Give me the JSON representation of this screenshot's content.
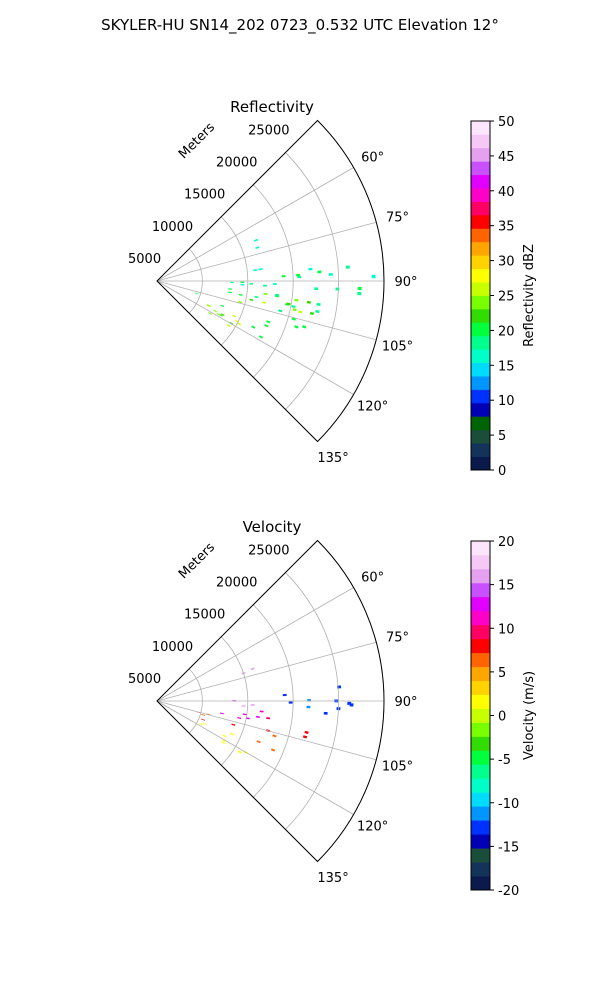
{
  "figure": {
    "title": "SKYLER-HU  SN14_202  0723_0.532 UTC Elevation 12°"
  },
  "chart_data": [
    {
      "type": "heatmap",
      "projection": "polar-sector",
      "title": "Reflectivity",
      "range_label": "Meters",
      "range_ticks": [
        5000,
        10000,
        15000,
        20000,
        25000
      ],
      "range_lim": [
        0,
        25000
      ],
      "angle_ticks": [
        60,
        75,
        90,
        105,
        120,
        135
      ],
      "angle_tick_labels": [
        "60°",
        "75°",
        "90°",
        "105°",
        "120°",
        "135°"
      ],
      "angle_lim": [
        45,
        135
      ],
      "grid": true,
      "colorbar": {
        "label": "Reflectivity dBZ",
        "ticks": [
          0,
          5,
          10,
          15,
          20,
          25,
          30,
          35,
          40,
          45,
          50
        ],
        "range": [
          0,
          50
        ],
        "colors": [
          "#0a1a4d",
          "#13335a",
          "#1a4d3a",
          "#006400",
          "#0000b4",
          "#0032ff",
          "#0096ff",
          "#00dcff",
          "#00ffc8",
          "#00ff8c",
          "#00ff3c",
          "#32dc00",
          "#78ff00",
          "#c8ff00",
          "#ffff00",
          "#ffd200",
          "#ffa500",
          "#ff6400",
          "#ff0000",
          "#ff0064",
          "#ff00c8",
          "#e100ff",
          "#c850ff",
          "#e6a0f0",
          "#f5c8f5",
          "#fde6fd"
        ]
      },
      "echo_regions": [
        {
          "az": [
            83,
            94
          ],
          "r": [
            6000,
            24500
          ],
          "value": 18
        },
        {
          "az": [
            95,
            104
          ],
          "r": [
            4000,
            20000
          ],
          "value": 20
        },
        {
          "az": [
            104,
            112
          ],
          "r": [
            3000,
            17000
          ],
          "value": 21
        },
        {
          "az": [
            112,
            122
          ],
          "r": [
            5000,
            13000
          ],
          "value": 22
        },
        {
          "az": [
            96,
            104
          ],
          "r": [
            9000,
            16000
          ],
          "value": 25
        },
        {
          "az": [
            108,
            118
          ],
          "r": [
            6000,
            11000
          ],
          "value": 26
        },
        {
          "az": [
            66,
            72
          ],
          "r": [
            9500,
            12000
          ],
          "value": 15
        },
        {
          "az": [
            120,
            124
          ],
          "r": [
            5500,
            13000
          ],
          "value": 26
        }
      ]
    },
    {
      "type": "heatmap",
      "projection": "polar-sector",
      "title": "Velocity",
      "range_label": "Meters",
      "range_ticks": [
        5000,
        10000,
        15000,
        20000,
        25000
      ],
      "range_lim": [
        0,
        25000
      ],
      "angle_ticks": [
        60,
        75,
        90,
        105,
        120,
        135
      ],
      "angle_tick_labels": [
        "60°",
        "75°",
        "90°",
        "105°",
        "120°",
        "135°"
      ],
      "angle_lim": [
        45,
        135
      ],
      "grid": true,
      "colorbar": {
        "label": "Velocity (m/s)",
        "ticks": [
          -20,
          -15,
          -10,
          -5,
          0,
          5,
          10,
          15,
          20
        ],
        "range": [
          -20,
          20
        ],
        "colors": [
          "#0a1a4d",
          "#13335a",
          "#1a4d3a",
          "#0000b4",
          "#0032ff",
          "#0096ff",
          "#00dcff",
          "#00ffc8",
          "#00ff8c",
          "#00ff3c",
          "#32dc00",
          "#78ff00",
          "#c8ff00",
          "#ffff00",
          "#ffd200",
          "#ffa500",
          "#ff6400",
          "#ff0000",
          "#ff0064",
          "#ff00c8",
          "#e100ff",
          "#c850ff",
          "#e6a0f0",
          "#f5c8f5",
          "#fde6fd"
        ]
      },
      "echo_regions": [
        {
          "az": [
            84,
            94
          ],
          "r": [
            11000,
            22000
          ],
          "value": -12
        },
        {
          "az": [
            84,
            95
          ],
          "r": [
            7000,
            11000
          ],
          "value": 14
        },
        {
          "az": [
            95,
            103
          ],
          "r": [
            6000,
            14000
          ],
          "value": 12
        },
        {
          "az": [
            98,
            104
          ],
          "r": [
            12000,
            19000
          ],
          "value": 9
        },
        {
          "az": [
            104,
            113
          ],
          "r": [
            4000,
            16000
          ],
          "value": 8
        },
        {
          "az": [
            112,
            122
          ],
          "r": [
            5000,
            12000
          ],
          "value": 2
        },
        {
          "az": [
            66,
            72
          ],
          "r": [
            9500,
            12000
          ],
          "value": 15
        }
      ]
    }
  ]
}
